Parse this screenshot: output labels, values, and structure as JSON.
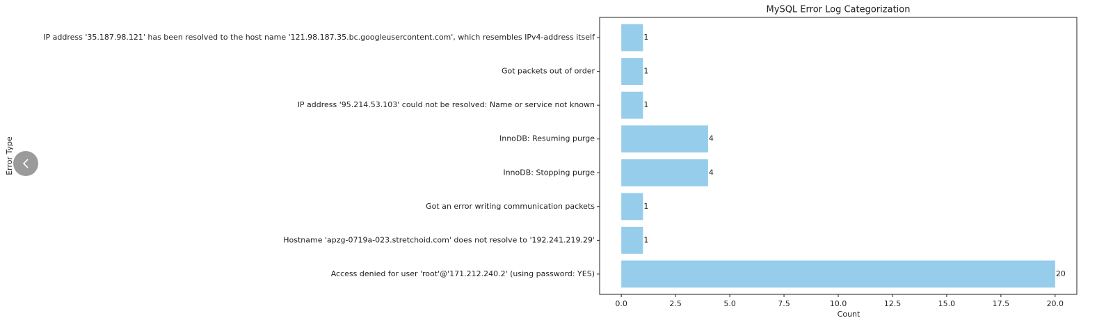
{
  "chart_data": {
    "type": "barh",
    "title": "MySQL Error Log Categorization",
    "xlabel": "Count",
    "ylabel": "Error Type",
    "categories": [
      "IP address '35.187.98.121' has been resolved to the host name '121.98.187.35.bc.googleusercontent.com', which resembles IPv4-address itself",
      "Got packets out of order",
      "IP address '95.214.53.103' could not be resolved: Name or service not known",
      "InnoDB: Resuming purge",
      "InnoDB: Stopping purge",
      "Got an error writing communication packets",
      "Hostname 'apzg-0719a-023.stretchoid.com' does not resolve to '192.241.219.29'",
      "Access denied for user 'root'@'171.212.240.2' (using password: YES)"
    ],
    "values": [
      1,
      1,
      1,
      4,
      4,
      1,
      1,
      20
    ],
    "color": "#96cdea",
    "xlim": [
      -1,
      21
    ],
    "xticks": [
      {
        "value": 0,
        "label": "0.0"
      },
      2.5,
      {
        "value": 5,
        "label": "5.0"
      },
      7.5,
      {
        "value": 10,
        "label": "10.0"
      },
      12.5,
      {
        "value": 15,
        "label": "15.0"
      },
      17.5,
      {
        "value": 20,
        "label": "20.0"
      }
    ],
    "grid": false
  }
}
